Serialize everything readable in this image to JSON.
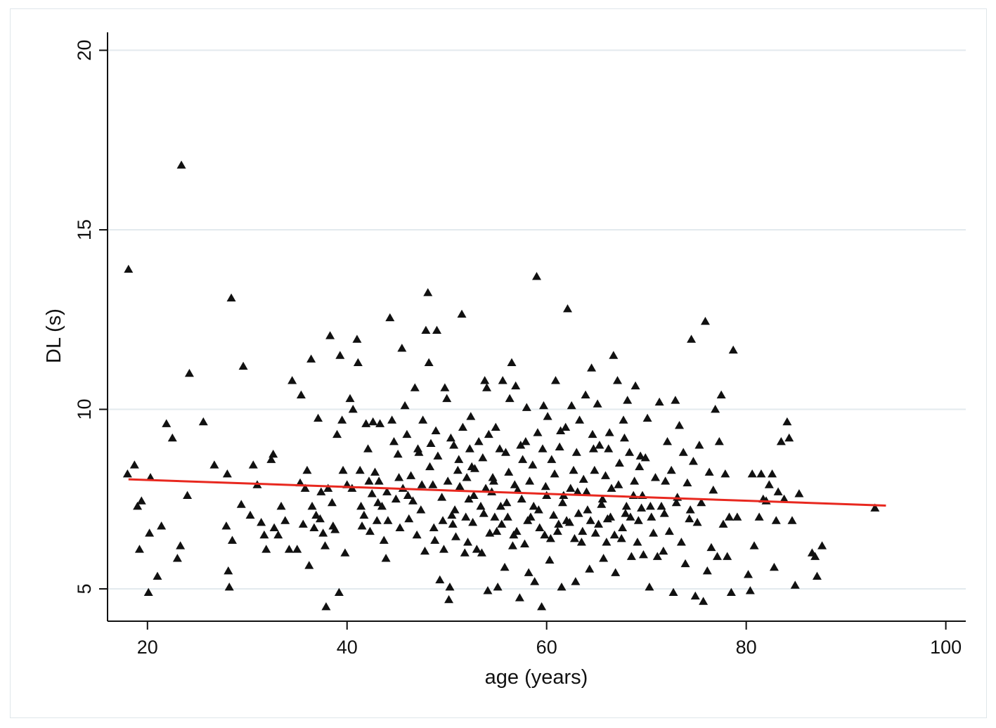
{
  "chart_data": {
    "type": "scatter",
    "title": "",
    "xlabel": "age (years)",
    "ylabel": "DL (s)",
    "xlim": [
      16,
      102
    ],
    "ylim": [
      4.1,
      20.5
    ],
    "xticks": [
      20,
      40,
      60,
      80,
      100
    ],
    "yticks": [
      5,
      10,
      15,
      20
    ],
    "grid": {
      "y": true,
      "x": false
    },
    "marker": "triangle",
    "colors": {
      "points": "#111111",
      "fit_line": "#e8281f",
      "grid": "#e3eaee",
      "axis": "#111111"
    },
    "fit_line": {
      "x": [
        18.1,
        94.0
      ],
      "y": [
        8.05,
        7.32
      ]
    },
    "points": [
      [
        18.1,
        13.9
      ],
      [
        23.4,
        16.8
      ],
      [
        24.2,
        11.0
      ],
      [
        28.4,
        13.1
      ],
      [
        29.6,
        11.2
      ],
      [
        18.0,
        8.2
      ],
      [
        18.7,
        8.45
      ],
      [
        19.0,
        7.3
      ],
      [
        19.4,
        7.45
      ],
      [
        19.2,
        6.1
      ],
      [
        20.1,
        4.9
      ],
      [
        20.2,
        6.55
      ],
      [
        20.3,
        8.1
      ],
      [
        21.0,
        5.35
      ],
      [
        21.4,
        6.75
      ],
      [
        21.9,
        9.6
      ],
      [
        22.5,
        9.2
      ],
      [
        23.0,
        5.85
      ],
      [
        23.3,
        6.2
      ],
      [
        24.0,
        7.6
      ],
      [
        25.6,
        9.65
      ],
      [
        26.7,
        8.45
      ],
      [
        27.9,
        6.75
      ],
      [
        28.0,
        8.2
      ],
      [
        28.1,
        5.5
      ],
      [
        28.2,
        5.05
      ],
      [
        28.5,
        6.35
      ],
      [
        29.4,
        7.35
      ],
      [
        30.3,
        7.05
      ],
      [
        30.6,
        8.45
      ],
      [
        31.0,
        7.9
      ],
      [
        31.4,
        6.85
      ],
      [
        31.7,
        6.5
      ],
      [
        31.9,
        6.1
      ],
      [
        32.4,
        8.6
      ],
      [
        32.6,
        8.75
      ],
      [
        32.7,
        6.7
      ],
      [
        33.1,
        6.5
      ],
      [
        33.4,
        7.3
      ],
      [
        33.8,
        6.9
      ],
      [
        34.2,
        6.1
      ],
      [
        34.5,
        10.8
      ],
      [
        35.0,
        6.1
      ],
      [
        35.3,
        7.95
      ],
      [
        35.4,
        10.4
      ],
      [
        35.6,
        6.8
      ],
      [
        35.8,
        7.8
      ],
      [
        36.0,
        8.3
      ],
      [
        36.2,
        5.65
      ],
      [
        36.4,
        11.4
      ],
      [
        36.5,
        7.3
      ],
      [
        36.7,
        6.7
      ],
      [
        36.9,
        7.05
      ],
      [
        37.1,
        9.75
      ],
      [
        37.3,
        6.95
      ],
      [
        37.4,
        7.7
      ],
      [
        37.6,
        6.55
      ],
      [
        37.8,
        6.2
      ],
      [
        37.9,
        4.5
      ],
      [
        38.1,
        7.8
      ],
      [
        38.3,
        12.05
      ],
      [
        38.5,
        7.4
      ],
      [
        38.6,
        6.75
      ],
      [
        38.8,
        6.65
      ],
      [
        39.0,
        9.3
      ],
      [
        39.2,
        4.9
      ],
      [
        39.3,
        11.5
      ],
      [
        39.5,
        9.7
      ],
      [
        39.8,
        6.0
      ],
      [
        40.0,
        7.9
      ],
      [
        40.3,
        10.3
      ],
      [
        40.6,
        10.0
      ],
      [
        41.0,
        11.95
      ],
      [
        41.1,
        11.3
      ],
      [
        41.3,
        8.3
      ],
      [
        41.5,
        6.75
      ],
      [
        41.7,
        7.05
      ],
      [
        41.9,
        9.6
      ],
      [
        42.1,
        8.9
      ],
      [
        42.3,
        6.6
      ],
      [
        42.5,
        7.65
      ],
      [
        42.6,
        9.65
      ],
      [
        42.8,
        8.25
      ],
      [
        43.0,
        6.9
      ],
      [
        43.2,
        8.0
      ],
      [
        43.3,
        9.6
      ],
      [
        43.5,
        7.3
      ],
      [
        43.7,
        6.35
      ],
      [
        43.9,
        5.85
      ],
      [
        44.1,
        6.9
      ],
      [
        44.3,
        12.55
      ],
      [
        44.5,
        9.7
      ],
      [
        44.7,
        9.1
      ],
      [
        44.9,
        7.5
      ],
      [
        45.1,
        8.75
      ],
      [
        45.3,
        6.7
      ],
      [
        45.5,
        11.7
      ],
      [
        45.6,
        7.8
      ],
      [
        45.8,
        10.1
      ],
      [
        46.0,
        9.3
      ],
      [
        46.2,
        6.95
      ],
      [
        46.4,
        8.15
      ],
      [
        46.6,
        7.45
      ],
      [
        46.8,
        10.6
      ],
      [
        47.0,
        6.5
      ],
      [
        47.2,
        8.8
      ],
      [
        47.4,
        7.2
      ],
      [
        47.6,
        9.7
      ],
      [
        47.8,
        6.05
      ],
      [
        47.9,
        12.2
      ],
      [
        48.1,
        13.25
      ],
      [
        48.2,
        11.3
      ],
      [
        48.4,
        9.05
      ],
      [
        48.6,
        7.9
      ],
      [
        48.8,
        6.35
      ],
      [
        49.0,
        12.2
      ],
      [
        49.1,
        8.7
      ],
      [
        49.3,
        5.25
      ],
      [
        49.5,
        7.55
      ],
      [
        49.6,
        6.9
      ],
      [
        49.8,
        10.6
      ],
      [
        50.0,
        10.3
      ],
      [
        50.2,
        4.7
      ],
      [
        50.3,
        5.05
      ],
      [
        50.5,
        7.05
      ],
      [
        50.7,
        9.0
      ],
      [
        50.9,
        6.45
      ],
      [
        51.1,
        8.3
      ],
      [
        51.3,
        7.85
      ],
      [
        51.5,
        12.65
      ],
      [
        51.6,
        9.5
      ],
      [
        51.8,
        6.0
      ],
      [
        52.0,
        8.1
      ],
      [
        52.2,
        7.5
      ],
      [
        52.4,
        9.8
      ],
      [
        52.6,
        6.85
      ],
      [
        52.8,
        8.35
      ],
      [
        53.0,
        6.1
      ],
      [
        53.2,
        9.1
      ],
      [
        53.4,
        7.3
      ],
      [
        53.6,
        8.65
      ],
      [
        53.8,
        10.8
      ],
      [
        54.0,
        10.6
      ],
      [
        54.1,
        4.95
      ],
      [
        54.3,
        6.55
      ],
      [
        54.5,
        7.7
      ],
      [
        54.7,
        8.0
      ],
      [
        54.9,
        9.5
      ],
      [
        55.1,
        5.05
      ],
      [
        55.3,
        8.9
      ],
      [
        55.5,
        6.8
      ],
      [
        55.6,
        10.8
      ],
      [
        55.8,
        5.6
      ],
      [
        56.0,
        7.4
      ],
      [
        56.2,
        8.25
      ],
      [
        56.3,
        10.3
      ],
      [
        56.5,
        11.3
      ],
      [
        56.7,
        6.5
      ],
      [
        56.9,
        10.65
      ],
      [
        57.1,
        7.75
      ],
      [
        57.3,
        4.75
      ],
      [
        57.4,
        9.0
      ],
      [
        57.6,
        8.6
      ],
      [
        57.8,
        6.25
      ],
      [
        58.0,
        10.05
      ],
      [
        58.2,
        5.45
      ],
      [
        58.4,
        7.0
      ],
      [
        58.6,
        8.45
      ],
      [
        58.8,
        5.2
      ],
      [
        59.0,
        13.7
      ],
      [
        59.1,
        9.35
      ],
      [
        59.3,
        6.7
      ],
      [
        59.5,
        4.5
      ],
      [
        59.7,
        10.1
      ],
      [
        59.9,
        7.85
      ],
      [
        60.1,
        9.8
      ],
      [
        60.3,
        5.8
      ],
      [
        60.5,
        8.6
      ],
      [
        60.7,
        7.05
      ],
      [
        60.9,
        10.8
      ],
      [
        61.1,
        6.6
      ],
      [
        61.3,
        8.95
      ],
      [
        61.5,
        5.05
      ],
      [
        61.7,
        7.6
      ],
      [
        61.9,
        9.5
      ],
      [
        62.1,
        12.8
      ],
      [
        62.3,
        6.85
      ],
      [
        62.5,
        10.1
      ],
      [
        62.7,
        8.3
      ],
      [
        62.9,
        5.2
      ],
      [
        63.1,
        7.7
      ],
      [
        63.3,
        9.7
      ],
      [
        63.5,
        6.3
      ],
      [
        63.7,
        8.05
      ],
      [
        63.9,
        10.4
      ],
      [
        64.1,
        7.2
      ],
      [
        64.3,
        5.55
      ],
      [
        64.5,
        11.15
      ],
      [
        64.7,
        8.9
      ],
      [
        64.9,
        6.55
      ],
      [
        65.1,
        10.15
      ],
      [
        65.3,
        9.0
      ],
      [
        65.5,
        7.35
      ],
      [
        65.7,
        5.85
      ],
      [
        65.9,
        8.15
      ],
      [
        66.1,
        6.95
      ],
      [
        66.3,
        9.35
      ],
      [
        66.5,
        7.8
      ],
      [
        66.7,
        11.5
      ],
      [
        66.9,
        5.45
      ],
      [
        67.1,
        10.8
      ],
      [
        67.3,
        8.5
      ],
      [
        67.5,
        6.4
      ],
      [
        67.7,
        9.7
      ],
      [
        67.9,
        7.1
      ],
      [
        68.1,
        10.25
      ],
      [
        68.3,
        8.8
      ],
      [
        68.5,
        5.9
      ],
      [
        68.7,
        7.6
      ],
      [
        68.9,
        10.65
      ],
      [
        69.1,
        6.3
      ],
      [
        69.3,
        8.4
      ],
      [
        69.5,
        7.25
      ],
      [
        69.7,
        5.95
      ],
      [
        69.9,
        8.65
      ],
      [
        70.1,
        9.75
      ],
      [
        70.3,
        5.05
      ],
      [
        70.5,
        7.0
      ],
      [
        70.7,
        6.55
      ],
      [
        70.9,
        8.1
      ],
      [
        71.1,
        5.9
      ],
      [
        71.3,
        10.2
      ],
      [
        71.5,
        7.3
      ],
      [
        71.7,
        6.05
      ],
      [
        71.9,
        8.0
      ],
      [
        72.1,
        9.1
      ],
      [
        72.3,
        6.6
      ],
      [
        72.5,
        8.3
      ],
      [
        72.7,
        4.9
      ],
      [
        72.9,
        10.25
      ],
      [
        73.1,
        7.55
      ],
      [
        73.3,
        9.55
      ],
      [
        73.5,
        6.3
      ],
      [
        73.7,
        8.8
      ],
      [
        73.9,
        5.7
      ],
      [
        74.1,
        7.95
      ],
      [
        74.3,
        6.95
      ],
      [
        74.5,
        11.95
      ],
      [
        74.7,
        8.55
      ],
      [
        74.9,
        4.8
      ],
      [
        75.1,
        6.85
      ],
      [
        75.3,
        9.0
      ],
      [
        75.5,
        7.4
      ],
      [
        75.7,
        4.65
      ],
      [
        75.9,
        12.45
      ],
      [
        76.1,
        5.5
      ],
      [
        76.3,
        8.25
      ],
      [
        76.5,
        6.15
      ],
      [
        76.7,
        7.75
      ],
      [
        76.9,
        10.0
      ],
      [
        77.1,
        5.9
      ],
      [
        77.3,
        9.1
      ],
      [
        77.5,
        10.4
      ],
      [
        77.7,
        6.8
      ],
      [
        77.9,
        8.2
      ],
      [
        78.1,
        5.9
      ],
      [
        78.3,
        7.0
      ],
      [
        78.5,
        4.9
      ],
      [
        78.7,
        11.65
      ],
      [
        79.1,
        7.0
      ],
      [
        80.2,
        5.4
      ],
      [
        80.4,
        4.95
      ],
      [
        80.6,
        8.2
      ],
      [
        80.8,
        6.2
      ],
      [
        81.3,
        7.0
      ],
      [
        81.5,
        8.2
      ],
      [
        81.7,
        7.5
      ],
      [
        82.0,
        7.45
      ],
      [
        82.3,
        7.9
      ],
      [
        82.6,
        8.2
      ],
      [
        82.8,
        5.6
      ],
      [
        83.0,
        6.9
      ],
      [
        83.2,
        7.7
      ],
      [
        83.5,
        9.1
      ],
      [
        83.8,
        7.5
      ],
      [
        84.1,
        9.65
      ],
      [
        84.3,
        9.2
      ],
      [
        84.6,
        6.9
      ],
      [
        84.9,
        5.1
      ],
      [
        85.3,
        7.65
      ],
      [
        86.6,
        6.0
      ],
      [
        86.9,
        5.9
      ],
      [
        87.1,
        5.35
      ],
      [
        87.6,
        6.2
      ],
      [
        92.9,
        7.25
      ],
      [
        47.5,
        7.9
      ],
      [
        48.3,
        8.4
      ],
      [
        50.8,
        7.2
      ],
      [
        51.9,
        7.0
      ],
      [
        52.7,
        7.6
      ],
      [
        53.9,
        7.8
      ],
      [
        54.6,
        8.1
      ],
      [
        55.4,
        7.3
      ],
      [
        56.1,
        7.0
      ],
      [
        56.8,
        7.9
      ],
      [
        57.5,
        7.5
      ],
      [
        58.3,
        8.0
      ],
      [
        59.2,
        7.2
      ],
      [
        60.0,
        7.6
      ],
      [
        60.8,
        8.2
      ],
      [
        61.6,
        7.4
      ],
      [
        62.4,
        7.8
      ],
      [
        63.2,
        7.1
      ],
      [
        64.0,
        7.7
      ],
      [
        64.8,
        8.3
      ],
      [
        65.6,
        7.5
      ],
      [
        66.4,
        7.0
      ],
      [
        67.2,
        7.9
      ],
      [
        68.0,
        7.3
      ],
      [
        68.8,
        8.0
      ],
      [
        69.6,
        7.6
      ],
      [
        46.1,
        7.6
      ],
      [
        45.2,
        8.1
      ],
      [
        44.0,
        7.7
      ],
      [
        43.1,
        7.4
      ],
      [
        42.2,
        8.0
      ],
      [
        41.4,
        7.3
      ],
      [
        40.5,
        7.8
      ],
      [
        39.6,
        8.3
      ],
      [
        50.1,
        8.0
      ],
      [
        51.2,
        8.6
      ],
      [
        52.5,
        8.4
      ],
      [
        53.7,
        7.1
      ],
      [
        55.0,
        6.6
      ],
      [
        56.6,
        6.2
      ],
      [
        58.1,
        6.9
      ],
      [
        59.8,
        6.5
      ],
      [
        61.2,
        6.8
      ],
      [
        62.8,
        6.4
      ],
      [
        64.4,
        6.9
      ],
      [
        66.0,
        6.3
      ],
      [
        67.6,
        6.7
      ],
      [
        69.2,
        6.9
      ],
      [
        70.4,
        7.3
      ],
      [
        71.8,
        7.1
      ],
      [
        73.0,
        7.4
      ],
      [
        74.4,
        7.2
      ],
      [
        48.7,
        6.7
      ],
      [
        49.7,
        6.1
      ],
      [
        50.6,
        6.8
      ],
      [
        52.1,
        6.3
      ],
      [
        53.5,
        6.0
      ],
      [
        54.8,
        7.0
      ],
      [
        57.0,
        6.6
      ],
      [
        58.7,
        7.3
      ],
      [
        60.4,
        6.4
      ],
      [
        62.0,
        6.9
      ],
      [
        63.6,
        6.6
      ],
      [
        65.2,
        6.8
      ],
      [
        66.8,
        6.5
      ],
      [
        68.4,
        7.0
      ],
      [
        47.1,
        8.9
      ],
      [
        48.9,
        9.4
      ],
      [
        50.4,
        9.2
      ],
      [
        52.3,
        8.9
      ],
      [
        54.2,
        9.3
      ],
      [
        55.9,
        8.8
      ],
      [
        57.9,
        9.1
      ],
      [
        59.6,
        8.9
      ],
      [
        61.4,
        9.4
      ],
      [
        63.0,
        8.8
      ],
      [
        64.6,
        9.3
      ],
      [
        66.2,
        8.9
      ],
      [
        67.8,
        9.2
      ],
      [
        69.4,
        8.7
      ]
    ]
  }
}
